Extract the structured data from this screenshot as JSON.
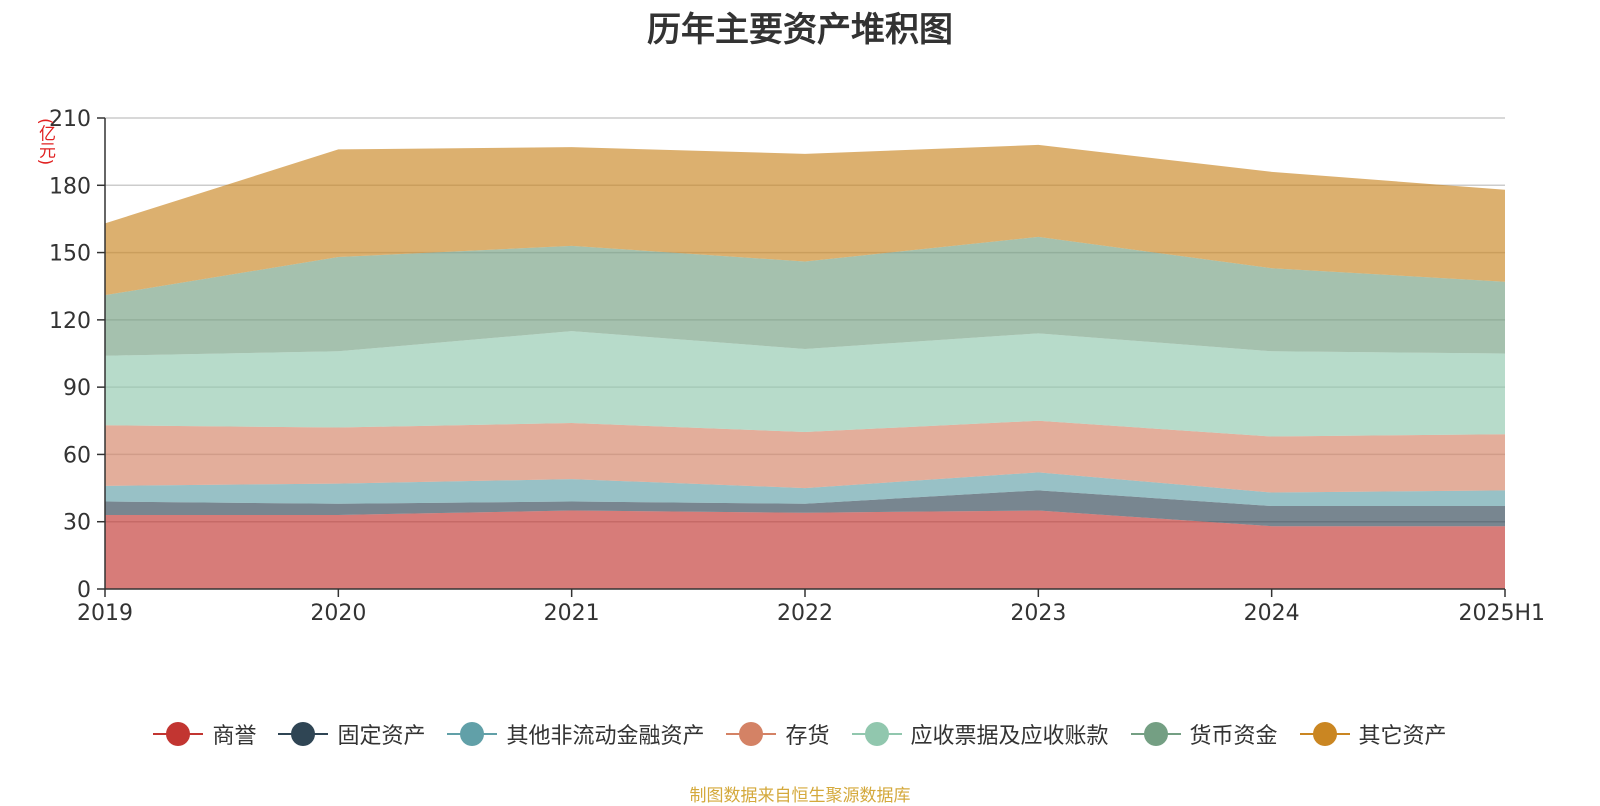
{
  "title": "历年主要资产堆积图",
  "unit": "(亿元)",
  "source": "制图数据来自恒生聚源数据库",
  "chart_data": {
    "type": "area",
    "stacked": true,
    "categories": [
      "2019",
      "2020",
      "2021",
      "2022",
      "2023",
      "2024",
      "2025H1"
    ],
    "ylim": [
      0,
      210
    ],
    "yticks": [
      0,
      30,
      60,
      90,
      120,
      150,
      180,
      210
    ],
    "grid": true,
    "legend_position": "bottom",
    "series": [
      {
        "name": "商誉",
        "color": "#c23531",
        "values": [
          33,
          33,
          35,
          34,
          35,
          28,
          28
        ]
      },
      {
        "name": "固定资产",
        "color": "#2f4554",
        "values": [
          6,
          5,
          4,
          4,
          9,
          9,
          9
        ]
      },
      {
        "name": "其他非流动金融资产",
        "color": "#61a0a8",
        "values": [
          7,
          9,
          10,
          7,
          8,
          6,
          7
        ]
      },
      {
        "name": "存货",
        "color": "#d48265",
        "values": [
          27,
          25,
          25,
          25,
          23,
          25,
          25
        ]
      },
      {
        "name": "应收票据及应收账款",
        "color": "#91c7ae",
        "values": [
          31,
          34,
          41,
          37,
          39,
          38,
          36
        ]
      },
      {
        "name": "货币资金",
        "color": "#749f83",
        "values": [
          27,
          42,
          38,
          39,
          43,
          37,
          32
        ]
      },
      {
        "name": "其它资产",
        "color": "#ca8622",
        "values": [
          32,
          48,
          44,
          48,
          41,
          43,
          41
        ]
      }
    ]
  }
}
